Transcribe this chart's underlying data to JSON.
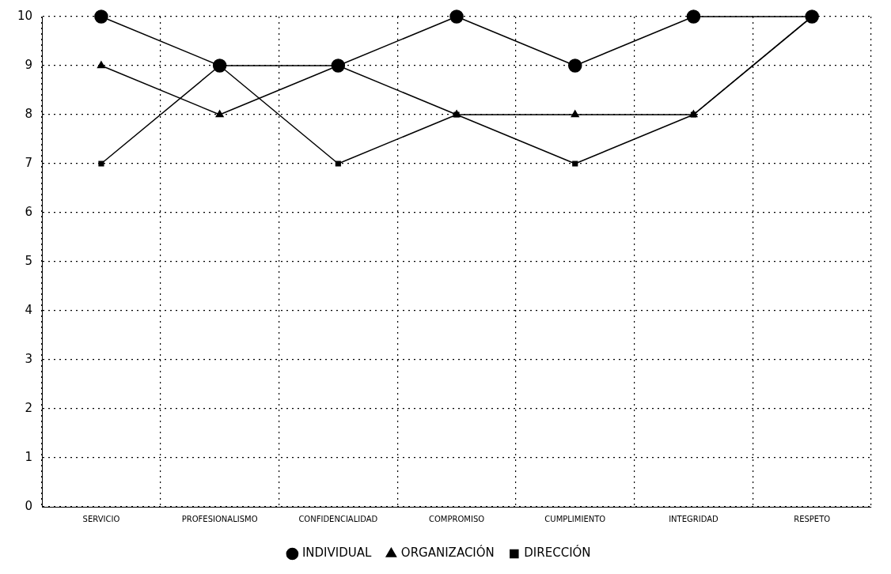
{
  "chart_data": {
    "type": "line",
    "categories": [
      "SERVICIO",
      "PROFESIONALISMO",
      "CONFIDENCIALIDAD",
      "COMPROMISO",
      "CUMPLIMIENTO",
      "INTEGRIDAD",
      "RESPETO"
    ],
    "series": [
      {
        "name": "INDIVIDUAL",
        "color": "#000000",
        "marker": "circle",
        "values": [
          10,
          9,
          9,
          10,
          9,
          10,
          10
        ]
      },
      {
        "name": "ORGANIZACIÓN",
        "color": "#000000",
        "marker": "triangle",
        "values": [
          9,
          8,
          9,
          8,
          8,
          8,
          10
        ]
      },
      {
        "name": "DIRECCIÓN",
        "color": "#000000",
        "marker": "square",
        "values": [
          7,
          9,
          7,
          8,
          7,
          8,
          10
        ]
      }
    ],
    "ylim": [
      0,
      10
    ],
    "yticks": [
      0,
      1,
      2,
      3,
      4,
      5,
      6,
      7,
      8,
      9,
      10
    ],
    "grid": true,
    "legend": "bottom",
    "line_style": "solid"
  }
}
